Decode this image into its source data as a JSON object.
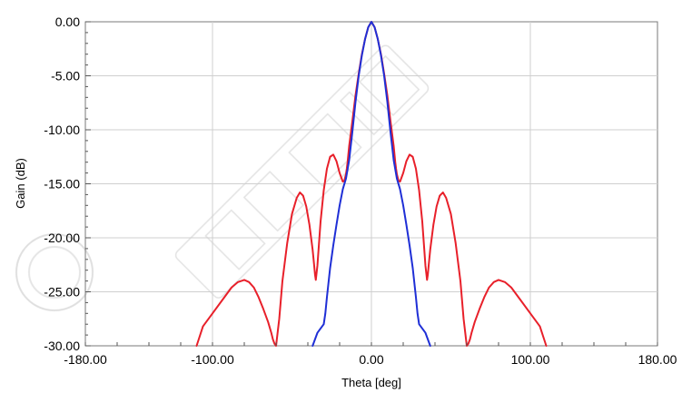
{
  "chart_data": {
    "type": "line",
    "title": "",
    "xlabel": "Theta [deg]",
    "ylabel": "Gain (dB)",
    "xlim": [
      -180,
      180
    ],
    "ylim": [
      -30,
      0
    ],
    "x_ticks": [
      {
        "value": -180,
        "label": "-180.00"
      },
      {
        "value": -100,
        "label": "-100.00"
      },
      {
        "value": 0,
        "label": "0.00"
      },
      {
        "value": 100,
        "label": "100.00"
      },
      {
        "value": 180,
        "label": "180.00"
      }
    ],
    "y_ticks": [
      {
        "value": 0,
        "label": "0.00"
      },
      {
        "value": -5,
        "label": "-5.00"
      },
      {
        "value": -10,
        "label": "-10.00"
      },
      {
        "value": -15,
        "label": "-15.00"
      },
      {
        "value": -20,
        "label": "-20.00"
      },
      {
        "value": -25,
        "label": "-25.00"
      },
      {
        "value": -30,
        "label": "-30.00"
      }
    ],
    "grid": true,
    "series": [
      {
        "color": "#e8202a",
        "x": [
          -110,
          -106,
          -100,
          -94,
          -88,
          -84,
          -80,
          -77,
          -74,
          -71,
          -68,
          -65,
          -63,
          -62,
          -61,
          -60,
          -58,
          -56,
          -53,
          -50,
          -47,
          -45,
          -43,
          -41,
          -39,
          -37,
          -36,
          -35.5,
          -35,
          -34,
          -32,
          -30,
          -28,
          -26,
          -24,
          -22,
          -20,
          -18,
          -17,
          -16,
          -15.5,
          -15,
          -14,
          -12,
          -10,
          -8,
          -6,
          -4,
          -2,
          0,
          2,
          4,
          6,
          8,
          10,
          12,
          14,
          15,
          15.5,
          16,
          17,
          18,
          20,
          22,
          24,
          26,
          28,
          30,
          32,
          34,
          35,
          35.5,
          36,
          37,
          39,
          41,
          43,
          45,
          47,
          50,
          53,
          56,
          58,
          60,
          61,
          62,
          63,
          65,
          68,
          71,
          74,
          77,
          80,
          84,
          88,
          94,
          100,
          106,
          110
        ],
        "y": [
          -30,
          -28.2,
          -27,
          -25.8,
          -24.6,
          -24.1,
          -23.9,
          -24.1,
          -24.6,
          -25.5,
          -26.6,
          -27.8,
          -28.8,
          -29.4,
          -29.8,
          -30,
          -27.5,
          -24,
          -20.5,
          -17.8,
          -16.3,
          -15.8,
          -16.1,
          -17.1,
          -18.8,
          -21.1,
          -22.6,
          -23.4,
          -23.9,
          -22.6,
          -18.5,
          -15.6,
          -13.6,
          -12.5,
          -12.3,
          -12.9,
          -14,
          -14.8,
          -14.7,
          -14.1,
          -13.6,
          -13,
          -11.5,
          -9.2,
          -6.8,
          -4.8,
          -3,
          -1.6,
          -0.5,
          0,
          -0.5,
          -1.6,
          -3,
          -4.8,
          -6.8,
          -9.2,
          -11.5,
          -13,
          -13.6,
          -14.1,
          -14.7,
          -14.8,
          -14,
          -12.9,
          -12.3,
          -12.5,
          -13.6,
          -15.6,
          -18.5,
          -22.6,
          -23.9,
          -23.4,
          -22.6,
          -21.1,
          -18.8,
          -17.1,
          -16.1,
          -15.8,
          -16.3,
          -17.8,
          -20.5,
          -24,
          -27.5,
          -30,
          -29.8,
          -29.4,
          -28.8,
          -27.8,
          -26.6,
          -25.5,
          -24.6,
          -24.1,
          -23.9,
          -24.1,
          -24.6,
          -25.8,
          -27,
          -28.2,
          -30
        ]
      },
      {
        "color": "#1f2fd6",
        "x": [
          -37,
          -36,
          -34,
          -32,
          -31,
          -30,
          -29,
          -28,
          -26,
          -24,
          -22,
          -20,
          -18,
          -16,
          -14,
          -12,
          -10,
          -8,
          -6,
          -4,
          -2,
          0,
          2,
          4,
          6,
          8,
          10,
          12,
          14,
          16,
          18,
          20,
          22,
          24,
          26,
          28,
          29,
          30,
          31,
          32,
          34,
          36,
          37
        ],
        "y": [
          -30,
          -29.6,
          -28.8,
          -28.4,
          -28.2,
          -28,
          -27,
          -25.5,
          -22.8,
          -20.7,
          -18.8,
          -17,
          -15.5,
          -14.5,
          -12.8,
          -10.2,
          -7.4,
          -5,
          -3.1,
          -1.6,
          -0.5,
          0,
          -0.5,
          -1.6,
          -3.1,
          -5,
          -7.4,
          -10.2,
          -12.8,
          -14.5,
          -15.5,
          -17,
          -18.8,
          -20.7,
          -22.8,
          -25.5,
          -27,
          -28,
          -28.2,
          -28.4,
          -28.8,
          -29.6,
          -30
        ]
      }
    ]
  }
}
